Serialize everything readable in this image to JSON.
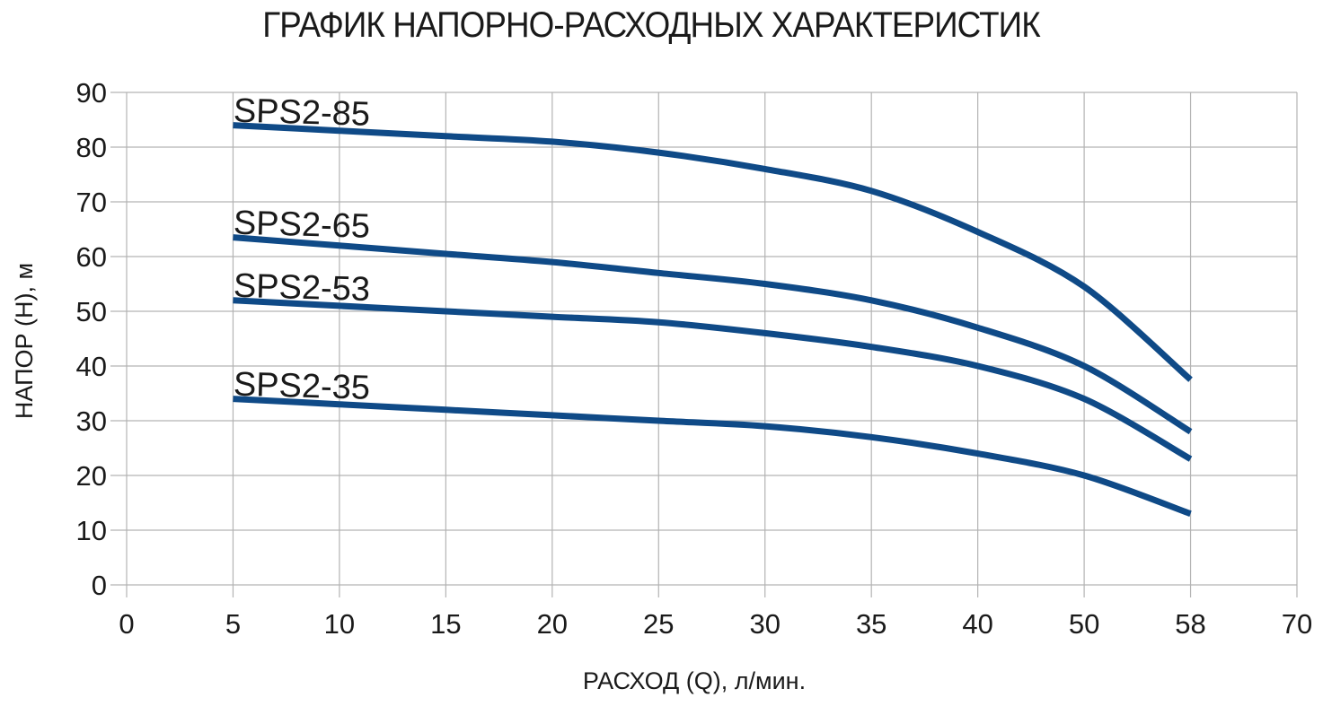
{
  "chart_data": {
    "type": "line",
    "title": "ГРАФИК НАПОРНО-РАСХОДНЫХ ХАРАКТЕРИСТИК",
    "xlabel": "РАСХОД (Q), л/мин.",
    "ylabel": "НАПОР (H), м",
    "x_axis_type": "categorical",
    "x_ticks": [
      "0",
      "5",
      "10",
      "15",
      "20",
      "25",
      "30",
      "35",
      "40",
      "50",
      "58",
      "70"
    ],
    "y_ticks": [
      0,
      10,
      20,
      30,
      40,
      50,
      60,
      70,
      80,
      90
    ],
    "ylim": [
      0,
      90
    ],
    "grid": true,
    "legend": "inline labels at curve start",
    "line_color": "#0f4a87",
    "series": [
      {
        "name": "SPS2-85",
        "x": [
          "5",
          "10",
          "15",
          "20",
          "25",
          "30",
          "35",
          "40",
          "50",
          "58"
        ],
        "values": [
          84,
          83,
          82,
          81,
          79,
          76,
          72,
          64.5,
          54.5,
          37.5
        ]
      },
      {
        "name": "SPS2-65",
        "x": [
          "5",
          "10",
          "15",
          "20",
          "25",
          "30",
          "35",
          "40",
          "50",
          "58"
        ],
        "values": [
          63.5,
          62,
          60.5,
          59,
          57,
          55,
          52,
          47,
          40,
          28
        ]
      },
      {
        "name": "SPS2-53",
        "x": [
          "5",
          "10",
          "15",
          "20",
          "25",
          "30",
          "35",
          "40",
          "50",
          "58"
        ],
        "values": [
          52,
          51,
          50,
          49,
          48,
          46,
          43.5,
          40,
          34,
          23
        ]
      },
      {
        "name": "SPS2-35",
        "x": [
          "5",
          "10",
          "15",
          "20",
          "25",
          "30",
          "35",
          "40",
          "50",
          "58"
        ],
        "values": [
          34,
          33,
          32,
          31,
          30,
          29,
          27,
          24,
          20,
          13
        ]
      }
    ]
  }
}
